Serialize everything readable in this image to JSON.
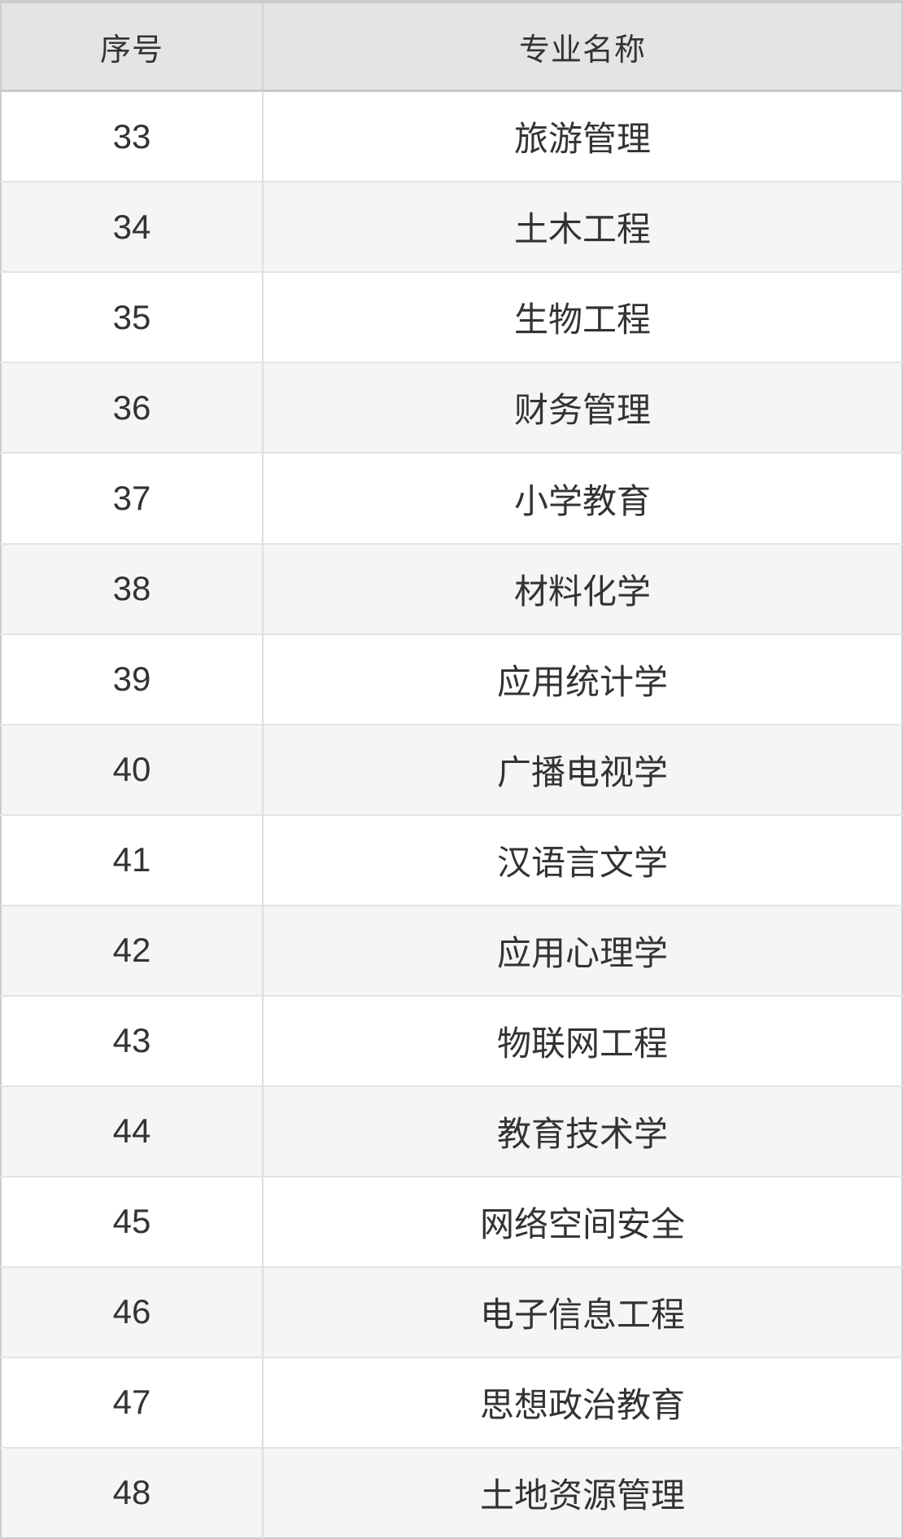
{
  "table": {
    "header": {
      "index_label": "序号",
      "major_label": "专业名称"
    },
    "rows": [
      {
        "index": "33",
        "major": "旅游管理"
      },
      {
        "index": "34",
        "major": "土木工程"
      },
      {
        "index": "35",
        "major": "生物工程"
      },
      {
        "index": "36",
        "major": "财务管理"
      },
      {
        "index": "37",
        "major": "小学教育"
      },
      {
        "index": "38",
        "major": "材料化学"
      },
      {
        "index": "39",
        "major": "应用统计学"
      },
      {
        "index": "40",
        "major": "广播电视学"
      },
      {
        "index": "41",
        "major": "汉语言文学"
      },
      {
        "index": "42",
        "major": "应用心理学"
      },
      {
        "index": "43",
        "major": "物联网工程"
      },
      {
        "index": "44",
        "major": "教育技术学"
      },
      {
        "index": "45",
        "major": "网络空间安全"
      },
      {
        "index": "46",
        "major": "电子信息工程"
      },
      {
        "index": "47",
        "major": "思想政治教育"
      },
      {
        "index": "48",
        "major": "土地资源管理"
      }
    ]
  },
  "colors": {
    "header_background": "#e4e4e4",
    "row_alternate_background": "#f5f5f5",
    "row_background": "#ffffff",
    "outer_border": "#cccccc",
    "header_rule": "#c9c9c9",
    "row_rule": "#e4e4e4",
    "column_rule": "#dedede",
    "text": "#333333"
  }
}
